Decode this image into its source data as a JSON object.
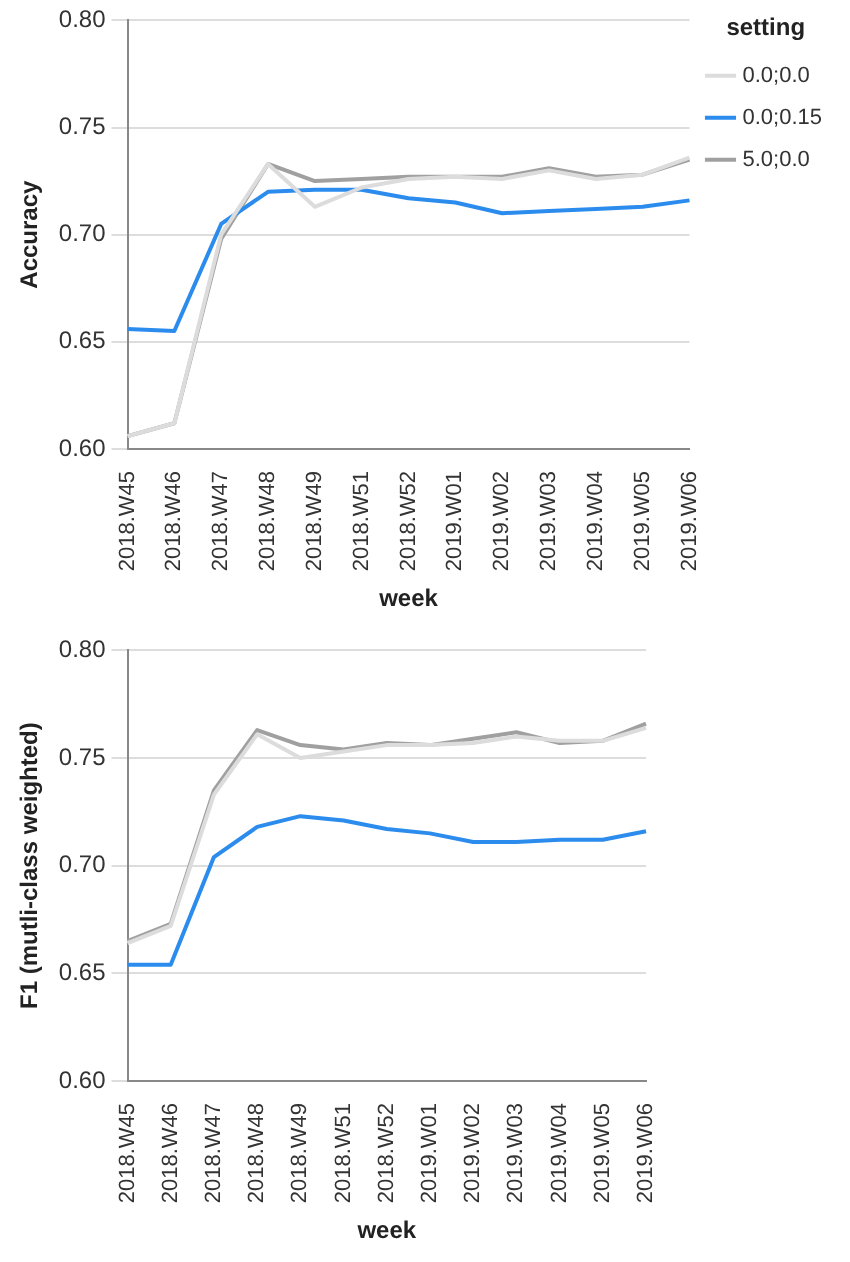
{
  "chart_data": [
    {
      "type": "line",
      "ylabel": "Accuracy",
      "xlabel": "week",
      "legend_title": "setting",
      "legend": "top right",
      "grid": "y",
      "ylim": [
        0.6,
        0.8
      ],
      "yticks": [
        {
          "value": 0.6,
          "label": "0.60"
        },
        {
          "value": 0.65,
          "label": "0.65"
        },
        {
          "value": 0.7,
          "label": "0.70"
        },
        {
          "value": 0.75,
          "label": "0.75"
        },
        {
          "value": 0.8,
          "label": "0.80"
        }
      ],
      "categories": [
        "2018.W45",
        "2018.W46",
        "2018.W47",
        "2018.W48",
        "2018.W49",
        "2018.W51",
        "2018.W52",
        "2019.W01",
        "2019.W02",
        "2019.W03",
        "2019.W04",
        "2019.W05",
        "2019.W06"
      ],
      "series": [
        {
          "name": "0.0;0.0",
          "color": "#dcdcdc",
          "values": [
            0.606,
            0.612,
            0.7,
            0.733,
            0.713,
            0.722,
            0.726,
            0.727,
            0.726,
            0.73,
            0.726,
            0.728,
            0.736
          ]
        },
        {
          "name": "0.0;0.15",
          "color": "#2b8cee",
          "values": [
            0.656,
            0.655,
            0.705,
            0.72,
            0.721,
            0.721,
            0.717,
            0.715,
            0.71,
            0.711,
            0.712,
            0.713,
            0.716
          ]
        },
        {
          "name": "5.0;0.0",
          "color": "#a0a0a0",
          "values": [
            0.606,
            0.612,
            0.698,
            0.733,
            0.725,
            0.726,
            0.727,
            0.727,
            0.727,
            0.731,
            0.727,
            0.728,
            0.735
          ]
        }
      ]
    },
    {
      "type": "line",
      "ylabel": "F1 (mutli-class weighted)",
      "xlabel": "week",
      "grid": "y",
      "ylim": [
        0.6,
        0.8
      ],
      "yticks": [
        {
          "value": 0.6,
          "label": "0.60"
        },
        {
          "value": 0.65,
          "label": "0.65"
        },
        {
          "value": 0.7,
          "label": "0.70"
        },
        {
          "value": 0.75,
          "label": "0.75"
        },
        {
          "value": 0.8,
          "label": "0.80"
        }
      ],
      "categories": [
        "2018.W45",
        "2018.W46",
        "2018.W47",
        "2018.W48",
        "2018.W49",
        "2018.W51",
        "2018.W52",
        "2019.W01",
        "2019.W02",
        "2019.W03",
        "2019.W04",
        "2019.W05",
        "2019.W06"
      ],
      "series": [
        {
          "color": "#dcdcdc",
          "values": [
            0.664,
            0.672,
            0.733,
            0.761,
            0.75,
            0.753,
            0.756,
            0.756,
            0.757,
            0.76,
            0.758,
            0.758,
            0.764
          ]
        },
        {
          "color": "#2b8cee",
          "values": [
            0.654,
            0.654,
            0.704,
            0.718,
            0.723,
            0.721,
            0.717,
            0.715,
            0.711,
            0.711,
            0.712,
            0.712,
            0.716
          ]
        },
        {
          "color": "#a0a0a0",
          "values": [
            0.665,
            0.673,
            0.735,
            0.763,
            0.756,
            0.754,
            0.757,
            0.756,
            0.759,
            0.762,
            0.757,
            0.758,
            0.766
          ]
        }
      ]
    }
  ]
}
